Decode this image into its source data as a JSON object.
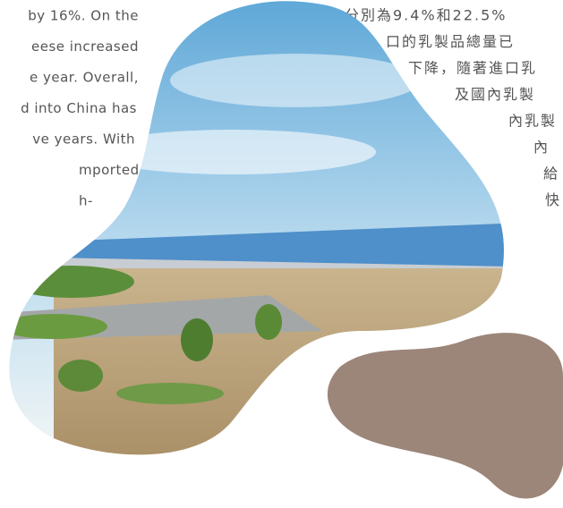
{
  "left_text": {
    "lines": [
      "by 16%. On the",
      "eese increased",
      "e year. Overall,",
      "d into China has",
      "ve years. With",
      "mported",
      "h-"
    ]
  },
  "right_text": {
    "lines": [
      "分別為9.4%和22.5%",
      "口的乳製品總量已",
      "下降，隨著進口乳",
      "及國內乳製",
      "內乳製",
      "內",
      "給",
      "快"
    ]
  }
}
